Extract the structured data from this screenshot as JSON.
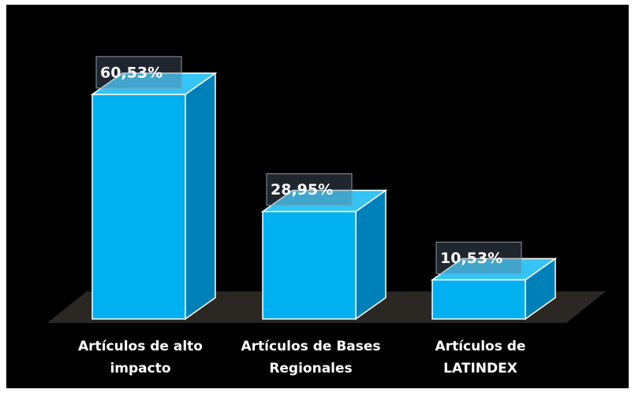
{
  "chart_data": {
    "type": "bar3d",
    "categories": [
      "Artículos de alto impacto",
      "Artículos de Bases Regionales",
      "Artículos de LATINDEX"
    ],
    "values": [
      60.53,
      28.95,
      10.53
    ],
    "value_labels": [
      "60,53%",
      "28,95%",
      "10,53%"
    ],
    "color": "#00b0f0"
  }
}
